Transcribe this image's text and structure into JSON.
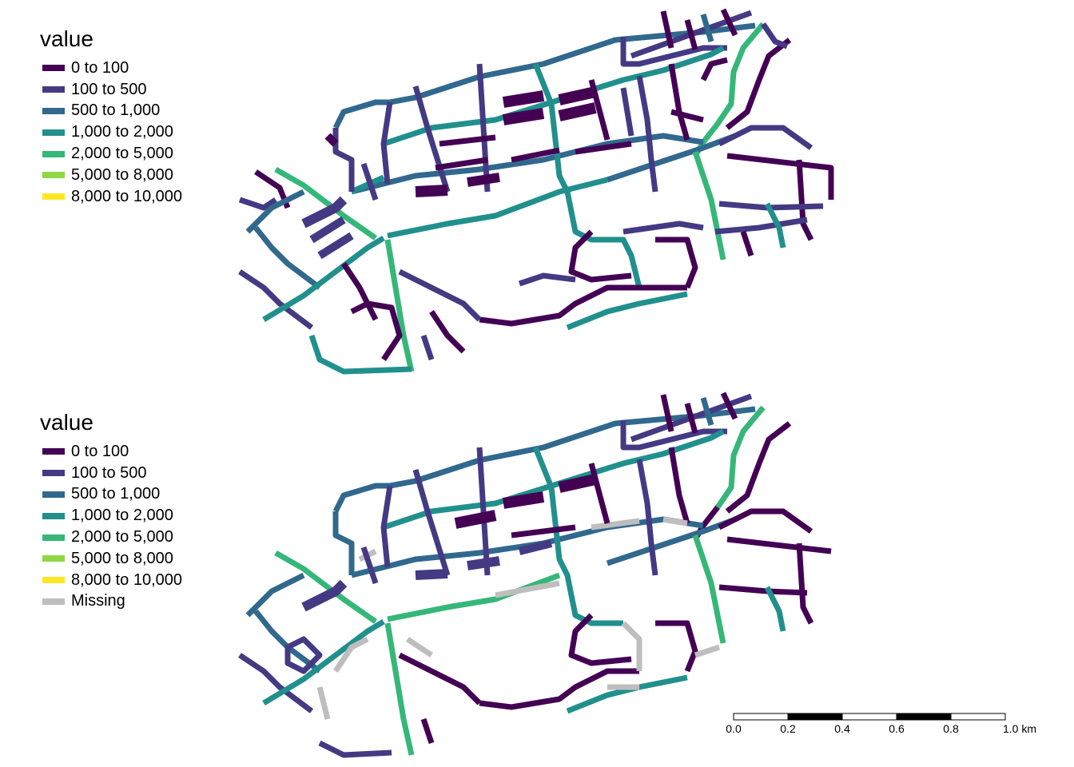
{
  "colors": {
    "c0": "#440154",
    "c1": "#443a83",
    "c2": "#31688e",
    "c3": "#21908d",
    "c4": "#35b779",
    "c5": "#8fd744",
    "c6": "#fde725",
    "missing": "#bebebe"
  },
  "map1": {
    "legend_title": "value",
    "legend": [
      {
        "label": "0 to 100",
        "color": "#440154"
      },
      {
        "label": "100 to 500",
        "color": "#443a83"
      },
      {
        "label": "500 to 1,000",
        "color": "#31688e"
      },
      {
        "label": "1,000 to 2,000",
        "color": "#21908d"
      },
      {
        "label": "2,000 to 5,000",
        "color": "#35b779"
      },
      {
        "label": "5,000 to 8,000",
        "color": "#8fd744"
      },
      {
        "label": "8,000 to 10,000",
        "color": "#fde725"
      }
    ]
  },
  "map2": {
    "legend_title": "value",
    "legend": [
      {
        "label": "0 to 100",
        "color": "#440154"
      },
      {
        "label": "100 to 500",
        "color": "#443a83"
      },
      {
        "label": "500 to 1,000",
        "color": "#31688e"
      },
      {
        "label": "1,000 to 2,000",
        "color": "#21908d"
      },
      {
        "label": "2,000 to 5,000",
        "color": "#35b779"
      },
      {
        "label": "5,000 to 8,000",
        "color": "#8fd744"
      },
      {
        "label": "8,000 to 10,000",
        "color": "#fde725"
      },
      {
        "label": "Missing",
        "color": "#bebebe"
      }
    ]
  },
  "scale_bar": {
    "labels": [
      "0.0",
      "0.2",
      "0.4",
      "0.6",
      "0.8",
      "1.0 km"
    ]
  }
}
